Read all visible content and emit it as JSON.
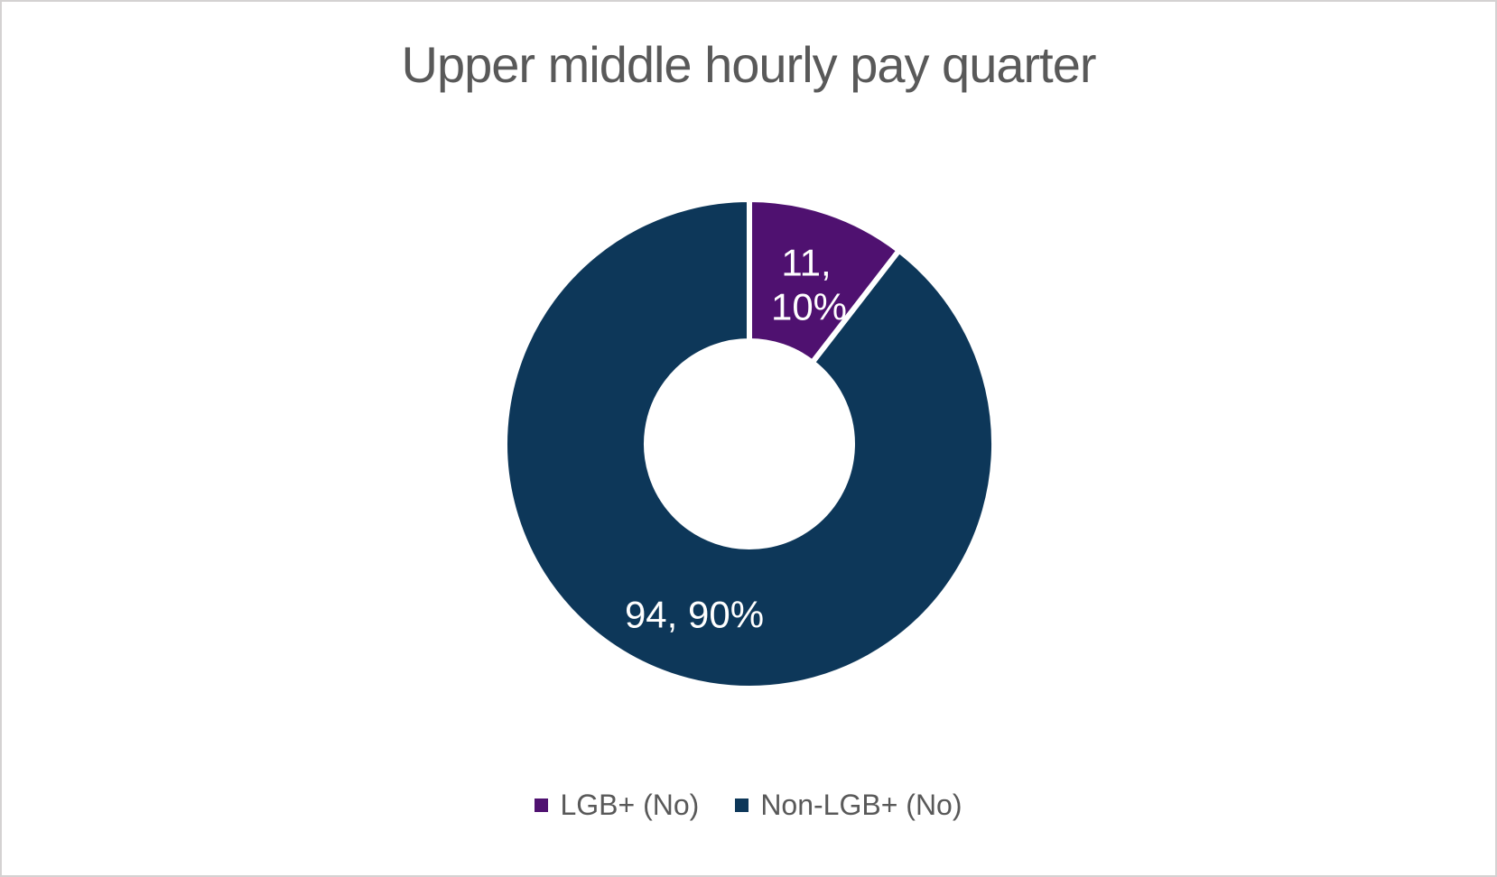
{
  "frame": {
    "background_color": "#FFFFFF",
    "border_color": "#D4D2D2"
  },
  "chart_data": {
    "type": "pie",
    "subtype": "donut",
    "title": "Upper middle hourly pay quarter",
    "title_color": "#595959",
    "categories": [
      "LGB+ (No)",
      "Non-LGB+ (No)"
    ],
    "values": [
      11,
      94
    ],
    "percentages": [
      10,
      90
    ],
    "colors": [
      "#4F1170",
      "#0D3759"
    ],
    "slice_border_color": "#FFFFFF",
    "start_angle_deg": 0,
    "donut_hole_ratio": 0.42,
    "data_label_color": "#FFFFFF",
    "data_labels": [
      {
        "text": "11, 10%",
        "lines": [
          "11,",
          "10%"
        ]
      },
      {
        "text": "94, 90%",
        "lines": [
          "94, 90%"
        ]
      }
    ],
    "legend": {
      "position": "bottom",
      "text_color": "#595959",
      "items": [
        {
          "label": "LGB+ (No)",
          "color": "#4F1170"
        },
        {
          "label": "Non-LGB+ (No)",
          "color": "#0D3759"
        }
      ]
    }
  }
}
